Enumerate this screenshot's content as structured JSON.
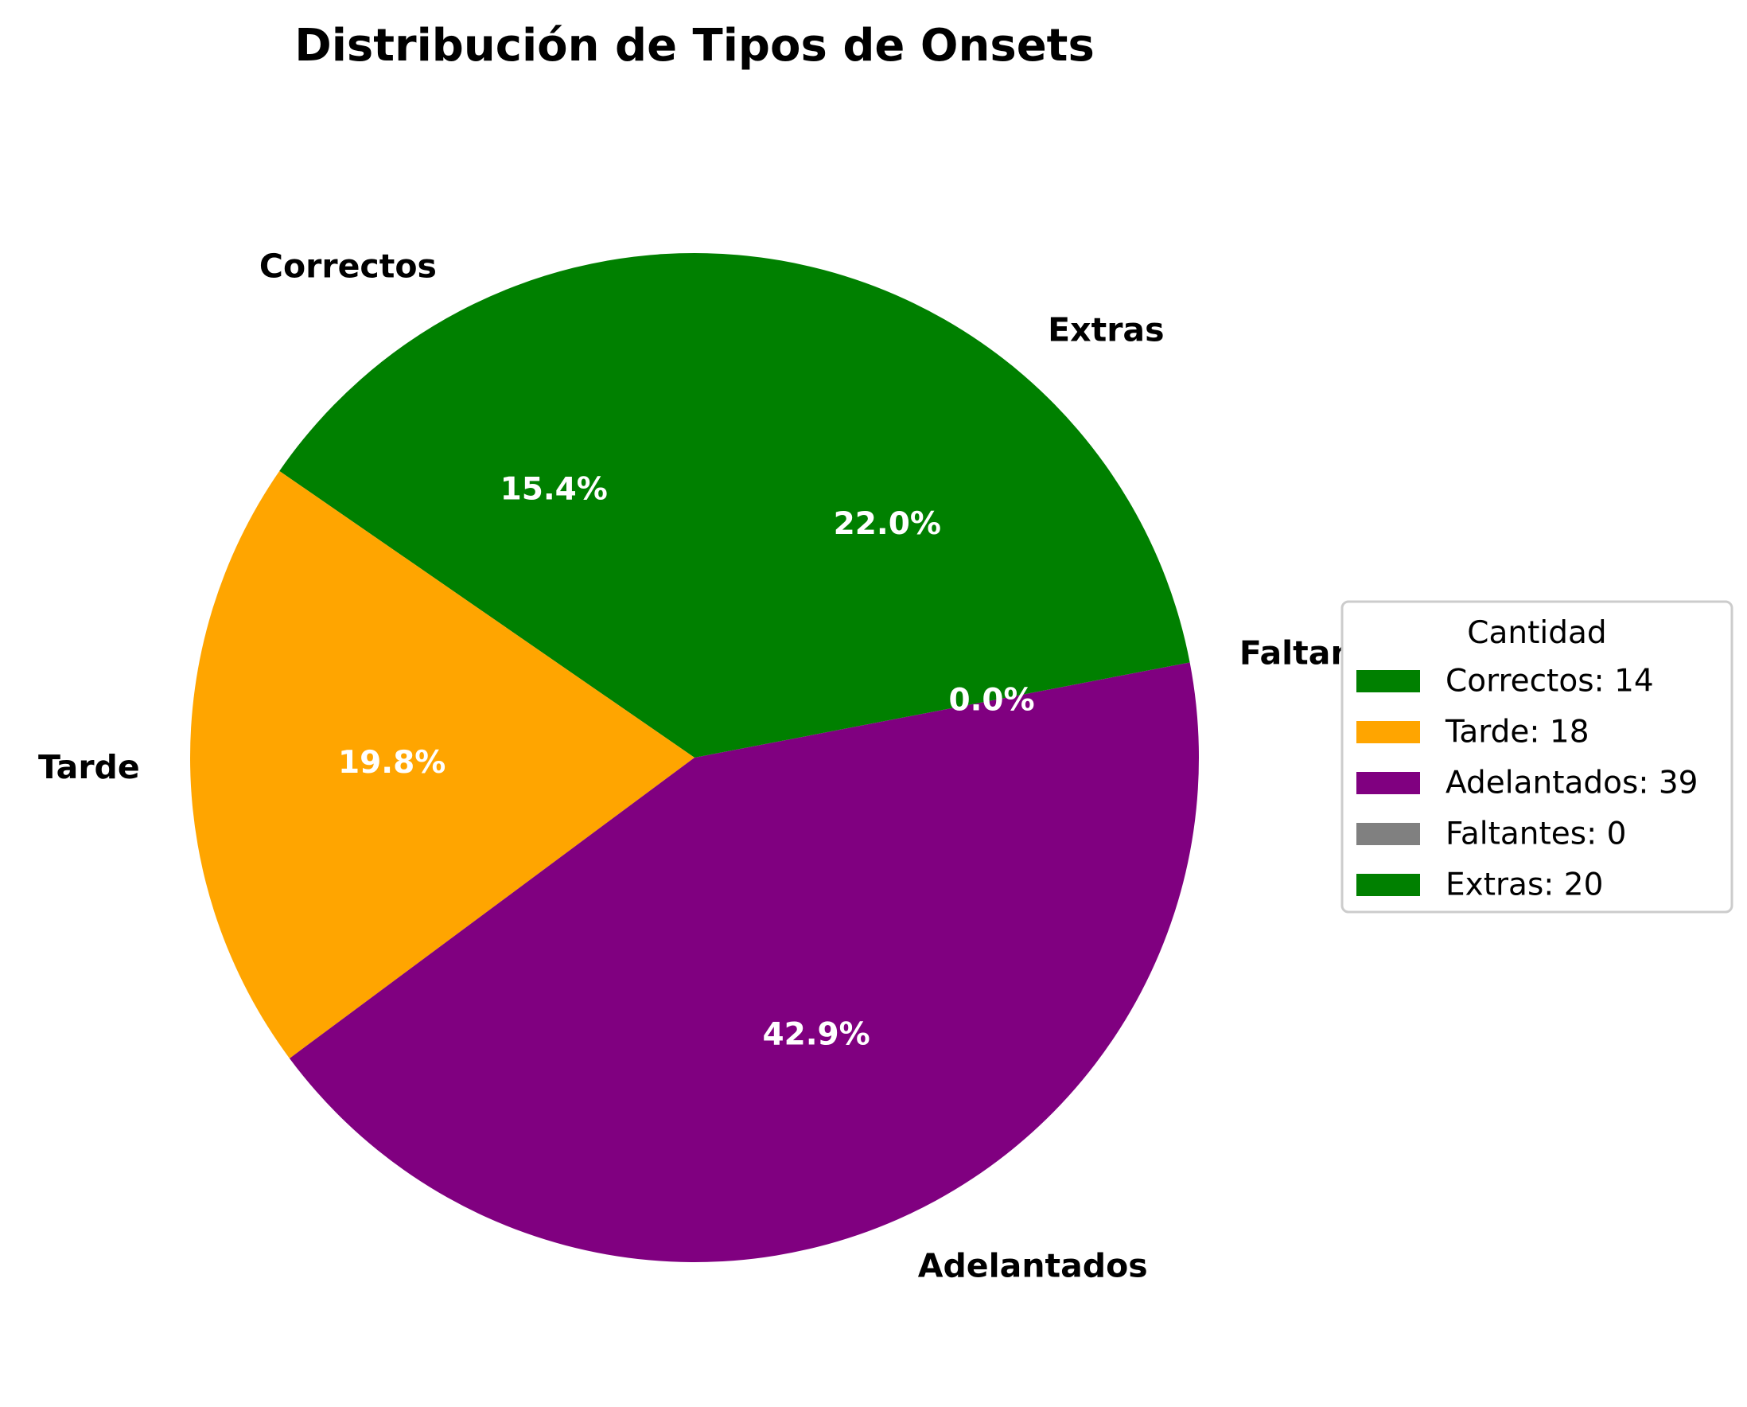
{
  "chart_data": {
    "type": "pie",
    "title": "Distribución de Tipos de Onsets",
    "start_angle_deg": 90,
    "direction": "counterclockwise",
    "slices": [
      {
        "label": "Correctos",
        "value": 14,
        "pct_label": "15.4%",
        "color": "#008000",
        "legend_label": "Correctos: 14"
      },
      {
        "label": "Tarde",
        "value": 18,
        "pct_label": "19.8%",
        "color": "#FFA500",
        "legend_label": "Tarde: 18"
      },
      {
        "label": "Adelantados",
        "value": 39,
        "pct_label": "42.9%",
        "color": "#800080",
        "legend_label": "Adelantados: 39"
      },
      {
        "label": "Faltantes",
        "value": 0,
        "pct_label": "0.0%",
        "color": "#808080",
        "legend_label": "Faltantes: 0"
      },
      {
        "label": "Extras",
        "value": 20,
        "pct_label": "22.0%",
        "color": "#008000",
        "legend_label": "Extras: 20"
      }
    ],
    "legend": {
      "title": "Cantidad",
      "placement": "center-right"
    }
  }
}
